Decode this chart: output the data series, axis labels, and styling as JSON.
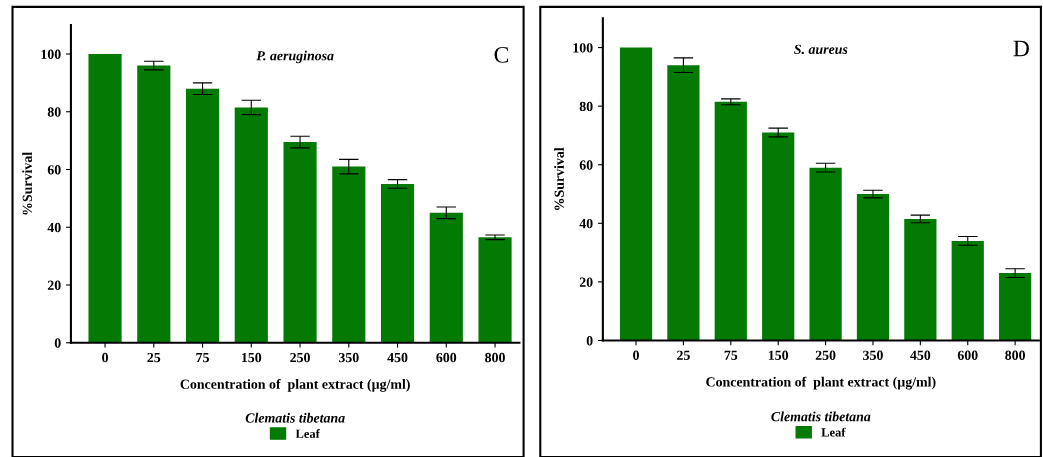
{
  "chart_data": [
    {
      "type": "bar",
      "title": "P. aeruginosa",
      "annotations": [
        "C"
      ],
      "xlabel": "Concentration of  plant extract (µg/ml)",
      "ylabel": "%Survival",
      "legend_title": "Clematis tibetana",
      "legend": "bottom",
      "categories": [
        "0",
        "25",
        "75",
        "150",
        "250",
        "350",
        "450",
        "600",
        "800"
      ],
      "series": [
        {
          "name": "Leaf",
          "color": "#037a03",
          "values": [
            100,
            96,
            88,
            81.5,
            69.5,
            61,
            55,
            45,
            36.5
          ],
          "errors": [
            null,
            1.5,
            2,
            2.5,
            2,
            2.5,
            1.5,
            2,
            0.8
          ]
        }
      ],
      "ylim": [
        0,
        110
      ],
      "yticks": [
        0,
        20,
        40,
        60,
        80,
        100
      ]
    },
    {
      "type": "bar",
      "title": "S. aureus",
      "annotations": [
        "D"
      ],
      "xlabel": "Concentration of  plant extract (µg/ml)",
      "ylabel": "%Survival",
      "legend_title": "Clematis tibetana",
      "legend": "bottom",
      "categories": [
        "0",
        "25",
        "75",
        "150",
        "250",
        "350",
        "450",
        "600",
        "800"
      ],
      "series": [
        {
          "name": "Leaf",
          "color": "#037a03",
          "values": [
            100,
            94,
            81.5,
            71,
            59,
            50,
            41.5,
            34,
            23
          ],
          "errors": [
            null,
            2.5,
            1,
            1.5,
            1.5,
            1.3,
            1.3,
            1.5,
            1.5
          ]
        }
      ],
      "ylim": [
        0,
        110
      ],
      "yticks": [
        0,
        20,
        40,
        60,
        80,
        100
      ]
    }
  ]
}
